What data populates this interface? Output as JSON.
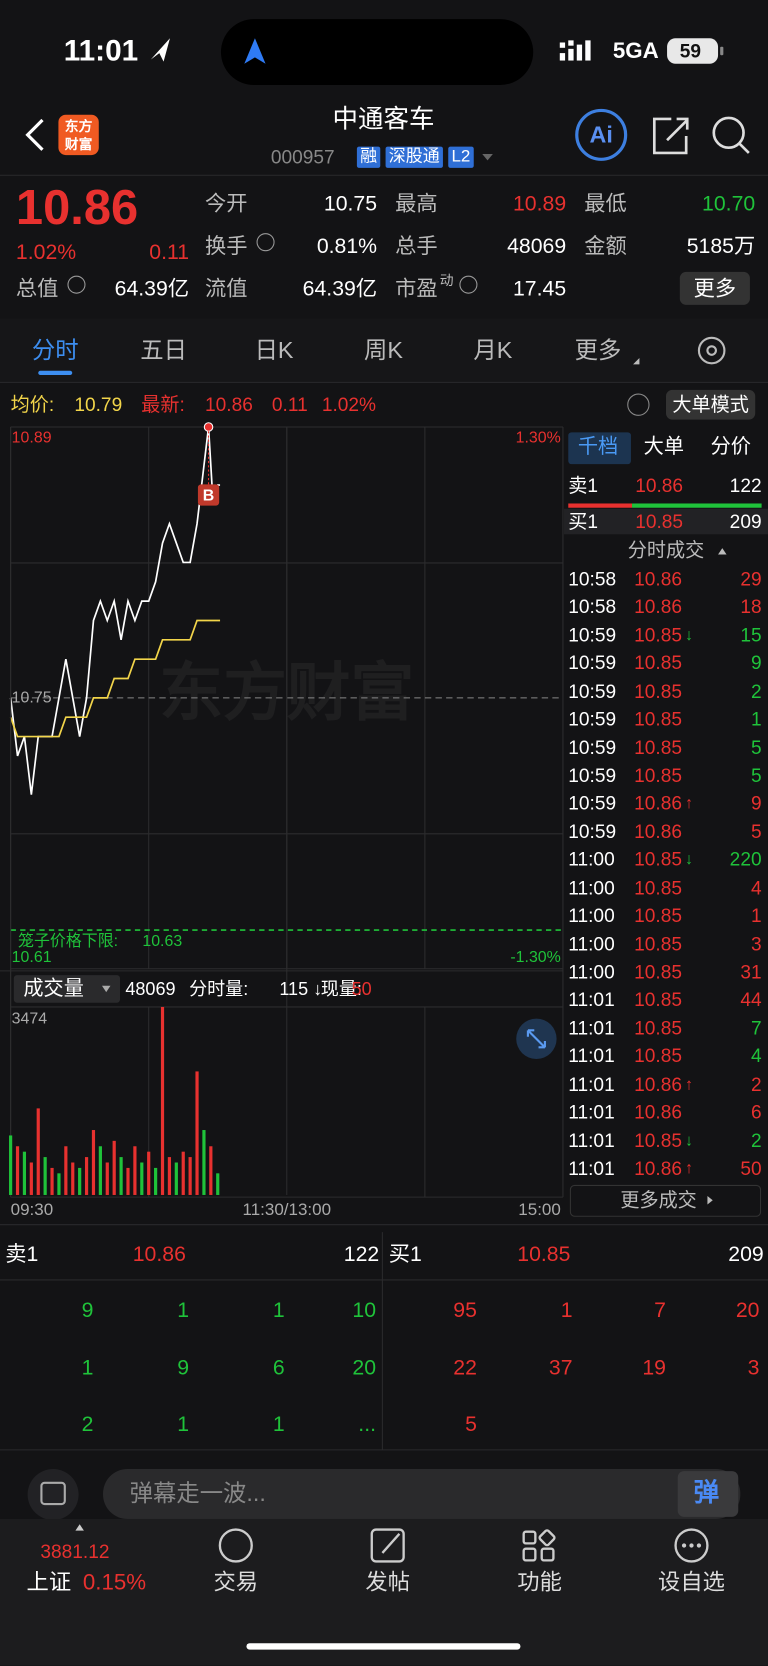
{
  "status_bar": {
    "time": "11:01",
    "network": "5GA",
    "battery": "59"
  },
  "header": {
    "logo": [
      "东方",
      "财富"
    ],
    "title": "中通客车",
    "code": "000957",
    "tags": [
      "融",
      "深股通",
      "L2"
    ],
    "ai": "Ai"
  },
  "quote": {
    "price": "10.86",
    "change_pct": "1.02%",
    "change": "0.11",
    "stats": [
      {
        "label": "今开",
        "value": "10.75"
      },
      {
        "label": "最高",
        "value": "10.89",
        "color": "#e8312f"
      },
      {
        "label": "最低",
        "value": "10.70",
        "color": "#1fc33a"
      },
      {
        "label": "换手",
        "value": "0.81%"
      },
      {
        "label": "总手",
        "value": "48069"
      },
      {
        "label": "金额",
        "value": "5185万"
      },
      {
        "label": "总值",
        "value": "64.39亿"
      },
      {
        "label": "流值",
        "value": "64.39亿"
      },
      {
        "label": "市盈",
        "sup": "动",
        "value": "17.45"
      }
    ],
    "more_button": "更多"
  },
  "tabs": [
    "分时",
    "五日",
    "日K",
    "周K",
    "月K",
    "更多"
  ],
  "info_bar": {
    "avg_label": "均价:",
    "avg": "10.79",
    "latest_label": "最新:",
    "latest": "10.86",
    "change": "0.11",
    "change_pct": "1.02%",
    "mode_button": "大单模式"
  },
  "chart_data": [
    {
      "type": "line",
      "watermark": "东方财富",
      "marker": "B",
      "grid": true,
      "x": [
        0,
        3,
        6,
        9,
        12,
        15,
        18,
        21,
        24,
        27,
        30,
        33,
        36,
        39,
        42,
        45,
        48,
        51,
        54,
        57,
        60,
        63,
        66,
        69,
        72,
        75,
        78,
        81,
        84,
        86,
        88,
        90,
        91
      ],
      "series": [
        {
          "color": "#ffffff",
          "values": [
            10.75,
            10.72,
            10.73,
            10.7,
            10.73,
            10.73,
            10.73,
            10.75,
            10.77,
            10.75,
            10.73,
            10.75,
            10.79,
            10.8,
            10.79,
            10.8,
            10.78,
            10.8,
            10.79,
            10.8,
            10.8,
            10.81,
            10.83,
            10.84,
            10.83,
            10.82,
            10.82,
            10.84,
            10.87,
            10.89,
            10.85,
            10.86,
            10.86
          ]
        },
        {
          "color": "#f2d54a",
          "values": [
            10.74,
            10.73,
            10.73,
            10.73,
            10.73,
            10.73,
            10.73,
            10.73,
            10.74,
            10.74,
            10.74,
            10.74,
            10.75,
            10.75,
            10.75,
            10.76,
            10.76,
            10.76,
            10.77,
            10.77,
            10.77,
            10.77,
            10.78,
            10.78,
            10.78,
            10.78,
            10.78,
            10.79,
            10.79,
            10.79,
            10.79,
            10.79,
            10.79
          ]
        }
      ],
      "xlim": [
        0,
        240
      ],
      "ylim": [
        10.61,
        10.89
      ],
      "yticks": [
        10.89,
        10.75,
        10.61
      ],
      "y2lim": [
        -1.3,
        1.3
      ],
      "y2ticks": [
        {
          "value": 1.3,
          "label": "1.30%"
        },
        {
          "value": -1.3,
          "label": "-1.30%"
        }
      ],
      "limit": {
        "label": "笼子价格下限:",
        "value": 10.63,
        "color": "#1fc33a"
      }
    },
    {
      "type": "bar",
      "x": [
        0,
        3,
        6,
        9,
        12,
        15,
        18,
        21,
        24,
        27,
        30,
        33,
        36,
        39,
        42,
        45,
        48,
        51,
        54,
        57,
        60,
        63,
        66,
        69,
        72,
        75,
        78,
        81,
        84,
        87,
        90
      ],
      "values": [
        1100,
        900,
        800,
        600,
        1600,
        700,
        500,
        400,
        900,
        600,
        500,
        700,
        1200,
        900,
        600,
        1000,
        700,
        500,
        900,
        600,
        800,
        500,
        3474,
        700,
        600,
        800,
        700,
        2283,
        1200,
        900,
        400
      ],
      "colors": [
        "#1fc33a",
        "#e8312f",
        "#1fc33a",
        "#e8312f",
        "#e8312f",
        "#1fc33a",
        "#e8312f",
        "#1fc33a",
        "#e8312f",
        "#e8312f",
        "#1fc33a",
        "#e8312f",
        "#e8312f",
        "#1fc33a",
        "#e8312f",
        "#e8312f",
        "#1fc33a",
        "#e8312f",
        "#e8312f",
        "#1fc33a",
        "#e8312f",
        "#1fc33a",
        "#e8312f",
        "#e8312f",
        "#1fc33a",
        "#e8312f",
        "#e8312f",
        "#e8312f",
        "#1fc33a",
        "#e8312f",
        "#1fc33a"
      ],
      "xlim": [
        0,
        240
      ],
      "ylim": [
        0,
        3474
      ],
      "yticks": [
        3474
      ],
      "xticks": [
        {
          "value": 0,
          "label": "09:30"
        },
        {
          "value": 120,
          "label": "11:30/13:00"
        },
        {
          "value": 240,
          "label": "15:00"
        }
      ]
    }
  ],
  "volume_bar": {
    "selector": "成交量",
    "total": "48069",
    "minute_label": "分时量:",
    "minute_value": "115 ↓",
    "current_label": "现量:",
    "current": "50"
  },
  "side_panel": {
    "tabs": [
      "千档",
      "大单",
      "分价"
    ],
    "ask": {
      "label": "卖1",
      "price": "10.86",
      "volume": "122"
    },
    "bid": {
      "label": "买1",
      "price": "10.85",
      "volume": "209"
    },
    "trades_title": "分时成交",
    "trades": [
      {
        "time": "10:58",
        "price": "10.86",
        "volume": "29",
        "color": "#e8312f"
      },
      {
        "time": "10:58",
        "price": "10.86",
        "volume": "18",
        "color": "#e8312f"
      },
      {
        "time": "10:59",
        "price": "10.85",
        "arrow": "↓",
        "volume": "15",
        "color": "#1fc33a"
      },
      {
        "time": "10:59",
        "price": "10.85",
        "volume": "9",
        "color": "#1fc33a"
      },
      {
        "time": "10:59",
        "price": "10.85",
        "volume": "2",
        "color": "#1fc33a"
      },
      {
        "time": "10:59",
        "price": "10.85",
        "volume": "1",
        "color": "#1fc33a"
      },
      {
        "time": "10:59",
        "price": "10.85",
        "volume": "5",
        "color": "#1fc33a"
      },
      {
        "time": "10:59",
        "price": "10.85",
        "volume": "5",
        "color": "#1fc33a"
      },
      {
        "time": "10:59",
        "price": "10.86",
        "arrow": "↑",
        "volume": "9",
        "color": "#e8312f"
      },
      {
        "time": "10:59",
        "price": "10.86",
        "volume": "5",
        "color": "#e8312f"
      },
      {
        "time": "11:00",
        "price": "10.85",
        "arrow": "↓",
        "volume": "220",
        "color": "#1fc33a"
      },
      {
        "time": "11:00",
        "price": "10.85",
        "volume": "4",
        "color": "#e8312f"
      },
      {
        "time": "11:00",
        "price": "10.85",
        "volume": "1",
        "color": "#e8312f"
      },
      {
        "time": "11:00",
        "price": "10.85",
        "volume": "3",
        "color": "#e8312f"
      },
      {
        "time": "11:00",
        "price": "10.85",
        "volume": "31",
        "color": "#e8312f"
      },
      {
        "time": "11:01",
        "price": "10.85",
        "volume": "44",
        "color": "#e8312f"
      },
      {
        "time": "11:01",
        "price": "10.85",
        "volume": "7",
        "color": "#1fc33a"
      },
      {
        "time": "11:01",
        "price": "10.85",
        "volume": "4",
        "color": "#1fc33a"
      },
      {
        "time": "11:01",
        "price": "10.86",
        "arrow": "↑",
        "volume": "2",
        "color": "#e8312f"
      },
      {
        "time": "11:01",
        "price": "10.86",
        "volume": "6",
        "color": "#e8312f"
      },
      {
        "time": "11:01",
        "price": "10.85",
        "arrow": "↓",
        "volume": "2",
        "color": "#1fc33a"
      },
      {
        "time": "11:01",
        "price": "10.86",
        "arrow": "↑",
        "volume": "50",
        "color": "#e8312f"
      }
    ],
    "more": "更多成交"
  },
  "depth": {
    "sell": {
      "label": "卖1",
      "price": "10.86",
      "volume": "122",
      "color": "#1fc33a",
      "queue": [
        "9",
        "1",
        "1",
        "10",
        "1",
        "9",
        "6",
        "20",
        "2",
        "1",
        "1",
        "..."
      ]
    },
    "buy": {
      "label": "买1",
      "price": "10.85",
      "volume": "209",
      "color": "#e8312f",
      "queue": [
        "95",
        "1",
        "7",
        "20",
        "22",
        "37",
        "19",
        "3",
        "5"
      ]
    }
  },
  "comment_bar": {
    "placeholder": "弹幕走一波...",
    "button": "弹"
  },
  "bottom_nav": {
    "index_value": "3881.12",
    "index_name": "上证",
    "index_pct": "0.15%",
    "items": [
      "交易",
      "发帖",
      "功能",
      "设自选"
    ]
  }
}
